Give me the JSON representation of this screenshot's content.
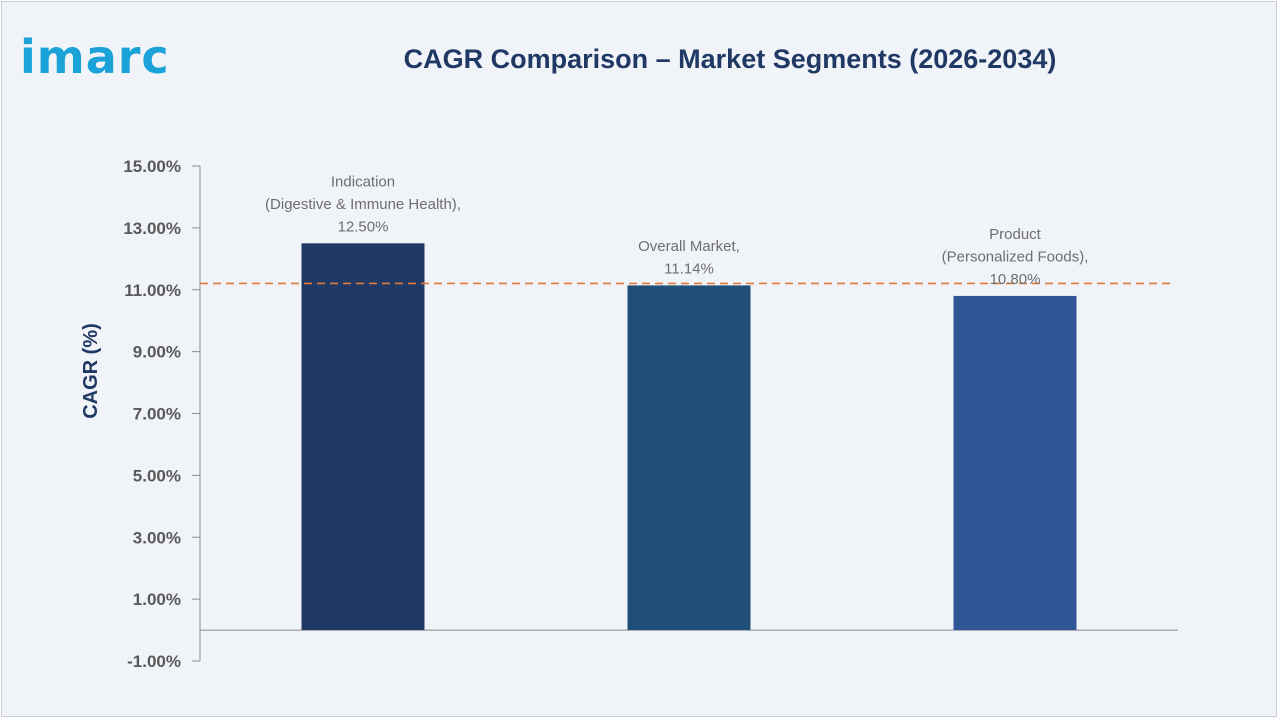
{
  "brand": {
    "logo_text": "imarc"
  },
  "chart_data": {
    "type": "bar",
    "title": "CAGR Comparison – Market Segments (2026-2034)",
    "ylabel": "CAGR (%)",
    "xlabel": "",
    "ylim": [
      -1,
      15
    ],
    "yticks": [
      15,
      13,
      11,
      9,
      7,
      5,
      3,
      1,
      -1
    ],
    "ytick_labels": [
      "15.00%",
      "13.00%",
      "11.00%",
      "9.00%",
      "7.00%",
      "5.00%",
      "3.00%",
      "1.00%",
      "-1.00%"
    ],
    "categories": [
      "Indication (Digestive & Immune Health)",
      "Overall Market",
      "Product (Personalized Foods)"
    ],
    "values": [
      12.5,
      11.14,
      10.8
    ],
    "data_labels": [
      [
        "Indication",
        "(Digestive & Immune Health),",
        "12.50%"
      ],
      [
        "Overall Market,",
        "11.14%"
      ],
      [
        "Product",
        "(Personalized Foods),",
        "10.80%"
      ]
    ],
    "colors": [
      "#203864",
      "#1f4e79",
      "#2f5597"
    ],
    "reference_line": {
      "value": 11.14,
      "style": "dashed",
      "color": "#e07b39"
    },
    "grid": false,
    "legend": "none"
  }
}
